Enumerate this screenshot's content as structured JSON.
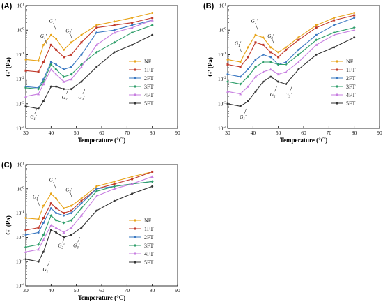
{
  "figure": {
    "colors": {
      "NF": "#e8a317",
      "1FT": "#c0392b",
      "2FT": "#3a78c2",
      "3FT": "#2e9e6a",
      "4FT": "#c77ee0",
      "5FT": "#333333"
    }
  },
  "chart_data": [
    {
      "panel": "(A)",
      "type": "line",
      "xlabel": "Temperature (°C)",
      "ylabel": "G' (Pa)",
      "xlim": [
        30,
        90
      ],
      "ylim_log10": [
        -4,
        1
      ],
      "y_scale": "log",
      "xticks": [
        "30",
        "40",
        "50",
        "60",
        "70",
        "80",
        "90"
      ],
      "yticks": [
        "10-4",
        "10-3",
        "10-2",
        "10-1",
        "100",
        "101"
      ],
      "legend": [
        "NF",
        "1FT",
        "2FT",
        "3FT",
        "4FT",
        "5FT"
      ],
      "legend_position": "right",
      "annotations": [
        {
          "label": "G1'",
          "x": 37,
          "y_log10": -0.3
        },
        {
          "label": "G2'",
          "x": 40.5,
          "y_log10": 0.3
        },
        {
          "label": "G3'",
          "x": 47,
          "y_log10": -0.1
        },
        {
          "label": "G1'",
          "x": 33,
          "y_log10": -3.6
        },
        {
          "label": "G2'",
          "x": 45.5,
          "y_log10": -2.8
        },
        {
          "label": "G3'",
          "x": 52,
          "y_log10": -2.8
        }
      ],
      "x": [
        30,
        35,
        37,
        40,
        42,
        45,
        48,
        52,
        58,
        65,
        72,
        80
      ],
      "series": [
        {
          "name": "NF",
          "y_log10": [
            -1.2,
            -1.25,
            -0.6,
            -0.2,
            -0.35,
            -0.8,
            -0.5,
            -0.2,
            0.2,
            0.35,
            0.5,
            0.7
          ]
        },
        {
          "name": "1FT",
          "y_log10": [
            -1.65,
            -1.7,
            -1.3,
            -0.6,
            -0.8,
            -1.1,
            -1.0,
            -0.5,
            0.1,
            0.2,
            0.3,
            0.5
          ]
        },
        {
          "name": "2FT",
          "y_log10": [
            -2.3,
            -2.35,
            -2.0,
            -1.3,
            -1.4,
            -1.6,
            -1.5,
            -1.0,
            -0.1,
            0.0,
            0.2,
            0.4
          ]
        },
        {
          "name": "3FT",
          "y_log10": [
            -2.35,
            -2.4,
            -2.1,
            -1.4,
            -1.6,
            -1.9,
            -1.8,
            -1.4,
            -0.9,
            -0.5,
            -0.1,
            0.2
          ]
        },
        {
          "name": "4FT",
          "y_log10": [
            -2.7,
            -2.6,
            -2.2,
            -1.6,
            -1.8,
            -2.1,
            -2.0,
            -1.5,
            -0.6,
            -0.1,
            0.1,
            0.4
          ]
        },
        {
          "name": "5FT",
          "y_log10": [
            -3.1,
            -3.2,
            -2.9,
            -2.3,
            -2.3,
            -2.4,
            -2.4,
            -2.1,
            -1.5,
            -0.9,
            -0.6,
            -0.2
          ]
        }
      ]
    },
    {
      "panel": "(B)",
      "type": "line",
      "xlabel": "Temperature (°C)",
      "ylabel": "G' (Pa)",
      "xlim": [
        30,
        90
      ],
      "ylim_log10": [
        -4,
        1
      ],
      "y_scale": "log",
      "xticks": [
        "30",
        "40",
        "50",
        "60",
        "70",
        "80",
        "90"
      ],
      "yticks": [
        "10-4",
        "10-3",
        "10-2",
        "10-1",
        "100",
        "101"
      ],
      "legend": [
        "NF",
        "1FT",
        "2FT",
        "3FT",
        "4FT",
        "5FT"
      ],
      "legend_position": "right",
      "annotations": [
        {
          "label": "G1'",
          "x": 34,
          "y_log10": -0.6
        },
        {
          "label": "G2'",
          "x": 40.5,
          "y_log10": 0.3
        },
        {
          "label": "G3'",
          "x": 47,
          "y_log10": -0.3
        },
        {
          "label": "G1'",
          "x": 36,
          "y_log10": -3.6
        },
        {
          "label": "G2'",
          "x": 48,
          "y_log10": -2.7
        },
        {
          "label": "G3'",
          "x": 54,
          "y_log10": -2.7
        }
      ],
      "x": [
        30,
        35,
        38,
        41,
        44,
        47,
        50,
        53,
        58,
        65,
        72,
        80
      ],
      "series": [
        {
          "name": "NF",
          "y_log10": [
            -1.2,
            -1.3,
            -0.7,
            -0.2,
            -0.3,
            -0.7,
            -0.9,
            -0.7,
            -0.3,
            0.2,
            0.5,
            0.7
          ]
        },
        {
          "name": "1FT",
          "y_log10": [
            -1.4,
            -1.5,
            -1.1,
            -0.5,
            -0.6,
            -0.9,
            -1.1,
            -0.8,
            -0.4,
            0.1,
            0.4,
            0.6
          ]
        },
        {
          "name": "2FT",
          "y_log10": [
            -1.8,
            -1.9,
            -1.6,
            -1.2,
            -1.0,
            -1.1,
            -1.4,
            -1.3,
            -0.8,
            -0.2,
            0.2,
            0.5
          ]
        },
        {
          "name": "3FT",
          "y_log10": [
            -2.1,
            -2.2,
            -1.9,
            -1.5,
            -1.3,
            -1.3,
            -1.4,
            -1.4,
            -1.0,
            -0.4,
            -0.1,
            0.1
          ]
        },
        {
          "name": "4FT",
          "y_log10": [
            -2.5,
            -2.6,
            -2.3,
            -1.9,
            -1.7,
            -1.6,
            -1.8,
            -1.7,
            -1.3,
            -0.6,
            -0.2,
            0.0
          ]
        },
        {
          "name": "5FT",
          "y_log10": [
            -3.0,
            -3.1,
            -2.9,
            -2.5,
            -2.1,
            -1.9,
            -2.1,
            -2.2,
            -1.6,
            -1.0,
            -0.7,
            -0.3
          ]
        }
      ]
    },
    {
      "panel": "(C)",
      "type": "line",
      "xlabel": "Temperature (°C)",
      "ylabel": "G' (Pa)",
      "xlim": [
        30,
        90
      ],
      "ylim_log10": [
        -4,
        1
      ],
      "y_scale": "log",
      "xticks": [
        "30",
        "40",
        "50",
        "60",
        "70",
        "80",
        "90"
      ],
      "yticks": [
        "10-4",
        "10-3",
        "10-2",
        "10-1",
        "100",
        "101"
      ],
      "legend": [
        "NF",
        "1FT",
        "2FT",
        "3FT",
        "4FT",
        "5FT"
      ],
      "legend_position": "right",
      "annotations": [
        {
          "label": "G1'",
          "x": 34,
          "y_log10": -0.4
        },
        {
          "label": "G2'",
          "x": 40.5,
          "y_log10": 0.3
        },
        {
          "label": "G3'",
          "x": 47,
          "y_log10": -0.1
        },
        {
          "label": "G1'",
          "x": 38,
          "y_log10": -3.4
        },
        {
          "label": "G2'",
          "x": 44,
          "y_log10": -2.4
        },
        {
          "label": "G3'",
          "x": 50,
          "y_log10": -2.4
        }
      ],
      "x": [
        30,
        35,
        37,
        40,
        42,
        45,
        48,
        52,
        58,
        65,
        72,
        80
      ],
      "series": [
        {
          "name": "NF",
          "y_log10": [
            -1.2,
            -1.25,
            -0.7,
            -0.2,
            -0.4,
            -0.8,
            -0.7,
            -0.4,
            0.1,
            0.3,
            0.5,
            0.7
          ]
        },
        {
          "name": "1FT",
          "y_log10": [
            -1.7,
            -1.6,
            -1.2,
            -0.6,
            -0.8,
            -1.0,
            -0.9,
            -0.5,
            0.0,
            0.2,
            0.4,
            0.7
          ]
        },
        {
          "name": "2FT",
          "y_log10": [
            -1.9,
            -1.8,
            -1.4,
            -0.8,
            -1.0,
            -1.1,
            -1.0,
            -0.6,
            0.0,
            0.1,
            0.2,
            0.3
          ]
        },
        {
          "name": "3FT",
          "y_log10": [
            -2.4,
            -2.3,
            -1.9,
            -1.1,
            -1.3,
            -1.4,
            -1.3,
            -0.8,
            -0.1,
            0.1,
            0.2,
            0.3
          ]
        },
        {
          "name": "4FT",
          "y_log10": [
            -2.6,
            -2.5,
            -2.1,
            -1.5,
            -1.6,
            -1.8,
            -1.6,
            -1.1,
            -0.3,
            0.0,
            0.2,
            0.5
          ]
        },
        {
          "name": "5FT",
          "y_log10": [
            -2.9,
            -3.0,
            -2.6,
            -1.7,
            -1.8,
            -2.0,
            -1.9,
            -1.6,
            -0.9,
            -0.5,
            -0.2,
            0.1
          ]
        }
      ]
    }
  ]
}
